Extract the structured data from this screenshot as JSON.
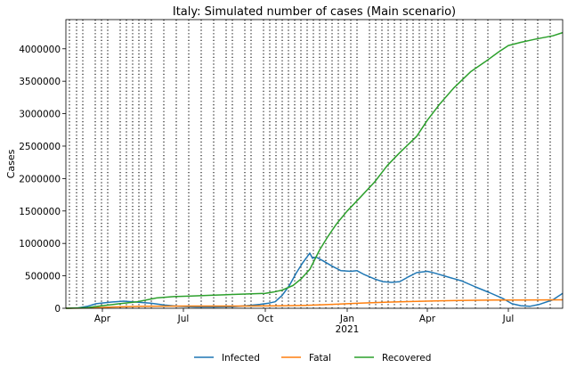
{
  "chart_data": {
    "type": "line",
    "title": "Italy: Simulated number of cases (Main scenario)",
    "xlabel": "",
    "ylabel": "Cases",
    "xlim": [
      "2020-02-20",
      "2021-08-31"
    ],
    "ylim": [
      0,
      4450000
    ],
    "x_ticks": [
      {
        "date": "2020-04-01",
        "label": "Apr"
      },
      {
        "date": "2020-07-01",
        "label": "Jul"
      },
      {
        "date": "2020-10-01",
        "label": "Oct"
      },
      {
        "date": "2021-01-01",
        "label": "Jan"
      },
      {
        "date": "2021-04-01",
        "label": "Apr"
      },
      {
        "date": "2021-07-01",
        "label": "Jul"
      }
    ],
    "x_year_label": {
      "date": "2021-01-01",
      "label": "2021"
    },
    "y_ticks": [
      0,
      500000,
      1000000,
      1500000,
      2000000,
      2500000,
      3000000,
      3500000,
      4000000
    ],
    "change_dates": [
      "2020-02-24",
      "2020-03-03",
      "2020-03-10",
      "2020-03-24",
      "2020-03-31",
      "2020-04-07",
      "2020-04-21",
      "2020-04-28",
      "2020-05-05",
      "2020-05-12",
      "2020-05-19",
      "2020-05-26",
      "2020-06-09",
      "2020-06-23",
      "2020-07-07",
      "2020-07-21",
      "2020-08-04",
      "2020-08-18",
      "2020-08-25",
      "2020-09-08",
      "2020-09-15",
      "2020-09-29",
      "2020-10-06",
      "2020-10-13",
      "2020-10-20",
      "2020-10-27",
      "2020-11-03",
      "2020-11-10",
      "2020-11-17",
      "2020-11-24",
      "2020-12-01",
      "2020-12-08",
      "2020-12-15",
      "2020-12-22",
      "2020-12-29",
      "2021-01-05",
      "2021-01-12",
      "2021-01-26",
      "2021-02-02",
      "2021-02-09",
      "2021-02-16",
      "2021-02-23",
      "2021-03-02",
      "2021-03-09",
      "2021-03-16",
      "2021-03-23",
      "2021-03-30",
      "2021-04-06",
      "2021-04-13",
      "2021-04-20",
      "2021-05-04",
      "2021-05-11",
      "2021-05-25",
      "2021-06-08",
      "2021-06-22",
      "2021-07-06",
      "2021-07-20",
      "2021-08-03",
      "2021-08-17"
    ],
    "legend_position": "bottom-center",
    "series": [
      {
        "name": "Infected",
        "color": "#1f77b4",
        "points": [
          [
            "2020-02-20",
            0
          ],
          [
            "2020-03-05",
            5000
          ],
          [
            "2020-03-15",
            30000
          ],
          [
            "2020-03-25",
            70000
          ],
          [
            "2020-04-10",
            95000
          ],
          [
            "2020-04-25",
            110000
          ],
          [
            "2020-05-10",
            95000
          ],
          [
            "2020-05-25",
            80000
          ],
          [
            "2020-06-10",
            50000
          ],
          [
            "2020-06-25",
            30000
          ],
          [
            "2020-07-15",
            20000
          ],
          [
            "2020-08-05",
            20000
          ],
          [
            "2020-08-25",
            25000
          ],
          [
            "2020-09-10",
            40000
          ],
          [
            "2020-09-25",
            60000
          ],
          [
            "2020-10-05",
            80000
          ],
          [
            "2020-10-12",
            100000
          ],
          [
            "2020-10-20",
            200000
          ],
          [
            "2020-10-28",
            350000
          ],
          [
            "2020-11-05",
            550000
          ],
          [
            "2020-11-12",
            700000
          ],
          [
            "2020-11-20",
            850000
          ],
          [
            "2020-11-23",
            770000
          ],
          [
            "2020-11-27",
            790000
          ],
          [
            "2020-12-05",
            730000
          ],
          [
            "2020-12-15",
            650000
          ],
          [
            "2020-12-25",
            580000
          ],
          [
            "2021-01-05",
            570000
          ],
          [
            "2021-01-12",
            580000
          ],
          [
            "2021-01-20",
            520000
          ],
          [
            "2021-02-01",
            450000
          ],
          [
            "2021-02-10",
            410000
          ],
          [
            "2021-02-20",
            400000
          ],
          [
            "2021-03-01",
            410000
          ],
          [
            "2021-03-10",
            480000
          ],
          [
            "2021-03-20",
            550000
          ],
          [
            "2021-04-01",
            570000
          ],
          [
            "2021-04-10",
            540000
          ],
          [
            "2021-04-25",
            480000
          ],
          [
            "2021-05-10",
            420000
          ],
          [
            "2021-05-25",
            330000
          ],
          [
            "2021-06-10",
            240000
          ],
          [
            "2021-06-25",
            150000
          ],
          [
            "2021-07-05",
            70000
          ],
          [
            "2021-07-15",
            40000
          ],
          [
            "2021-07-25",
            30000
          ],
          [
            "2021-08-05",
            60000
          ],
          [
            "2021-08-20",
            130000
          ],
          [
            "2021-08-31",
            230000
          ]
        ]
      },
      {
        "name": "Fatal",
        "color": "#ff7f0e",
        "points": [
          [
            "2020-02-20",
            0
          ],
          [
            "2020-03-20",
            5000
          ],
          [
            "2020-04-15",
            20000
          ],
          [
            "2020-05-15",
            30000
          ],
          [
            "2020-07-01",
            34000
          ],
          [
            "2020-09-01",
            35000
          ],
          [
            "2020-10-15",
            37000
          ],
          [
            "2020-11-15",
            45000
          ],
          [
            "2020-12-15",
            60000
          ],
          [
            "2021-01-15",
            80000
          ],
          [
            "2021-02-15",
            95000
          ],
          [
            "2021-03-15",
            105000
          ],
          [
            "2021-04-15",
            115000
          ],
          [
            "2021-05-15",
            122000
          ],
          [
            "2021-06-15",
            126000
          ],
          [
            "2021-07-15",
            128000
          ],
          [
            "2021-08-31",
            130000
          ]
        ]
      },
      {
        "name": "Recovered",
        "color": "#2ca02c",
        "points": [
          [
            "2020-02-20",
            0
          ],
          [
            "2020-03-15",
            10000
          ],
          [
            "2020-04-01",
            40000
          ],
          [
            "2020-04-20",
            70000
          ],
          [
            "2020-05-10",
            100000
          ],
          [
            "2020-06-01",
            160000
          ],
          [
            "2020-06-20",
            180000
          ],
          [
            "2020-07-10",
            190000
          ],
          [
            "2020-08-01",
            200000
          ],
          [
            "2020-09-01",
            215000
          ],
          [
            "2020-10-01",
            230000
          ],
          [
            "2020-10-10",
            250000
          ],
          [
            "2020-10-20",
            280000
          ],
          [
            "2020-11-01",
            350000
          ],
          [
            "2020-11-10",
            450000
          ],
          [
            "2020-11-20",
            600000
          ],
          [
            "2020-12-01",
            900000
          ],
          [
            "2020-12-10",
            1100000
          ],
          [
            "2020-12-20",
            1300000
          ],
          [
            "2021-01-01",
            1500000
          ],
          [
            "2021-01-15",
            1700000
          ],
          [
            "2021-02-01",
            1950000
          ],
          [
            "2021-02-15",
            2200000
          ],
          [
            "2021-03-01",
            2400000
          ],
          [
            "2021-03-20",
            2650000
          ],
          [
            "2021-04-01",
            2900000
          ],
          [
            "2021-04-15",
            3150000
          ],
          [
            "2021-05-01",
            3400000
          ],
          [
            "2021-05-20",
            3650000
          ],
          [
            "2021-06-05",
            3800000
          ],
          [
            "2021-06-20",
            3950000
          ],
          [
            "2021-07-01",
            4050000
          ],
          [
            "2021-07-15",
            4100000
          ],
          [
            "2021-08-01",
            4150000
          ],
          [
            "2021-08-20",
            4200000
          ],
          [
            "2021-08-31",
            4250000
          ]
        ]
      }
    ]
  }
}
